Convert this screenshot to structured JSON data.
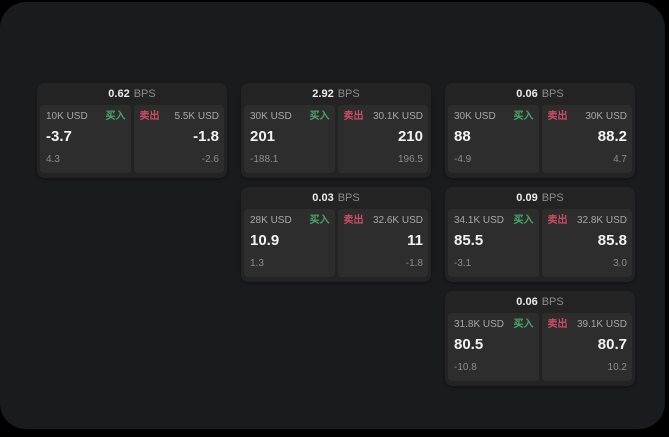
{
  "labels": {
    "bps": "BPS",
    "buy": "买入",
    "sell": "卖出"
  },
  "colors": {
    "background": "#000000",
    "window_bg": "#1a1b1c",
    "card_bg": "#232323",
    "cell_bg": "#2d2d2d",
    "buy_green": "#48a968",
    "sell_red": "#cc4c64",
    "price_text": "#f2f2f2",
    "muted_text": "#8c8c8c"
  },
  "cards": [
    {
      "bps": "0.62",
      "buy": {
        "notional": "10K USD",
        "price": "-3.7",
        "change": "4.3"
      },
      "sell": {
        "notional": "5.5K USD",
        "price": "-1.8",
        "change": "-2.6"
      }
    },
    {
      "bps": "2.92",
      "buy": {
        "notional": "30K USD",
        "price": "201",
        "change": "-188.1"
      },
      "sell": {
        "notional": "30.1K USD",
        "price": "210",
        "change": "196.5"
      }
    },
    {
      "bps": "0.06",
      "buy": {
        "notional": "30K USD",
        "price": "88",
        "change": "-4.9"
      },
      "sell": {
        "notional": "30K USD",
        "price": "88.2",
        "change": "4.7"
      }
    },
    {
      "bps": "0.03",
      "buy": {
        "notional": "28K USD",
        "price": "10.9",
        "change": "1.3"
      },
      "sell": {
        "notional": "32.6K USD",
        "price": "11",
        "change": "-1.8"
      }
    },
    {
      "bps": "0.09",
      "buy": {
        "notional": "34.1K USD",
        "price": "85.5",
        "change": "-3.1"
      },
      "sell": {
        "notional": "32.8K USD",
        "price": "85.8",
        "change": "3.0"
      }
    },
    {
      "bps": "0.06",
      "buy": {
        "notional": "31.8K USD",
        "price": "80.5",
        "change": "-10.8"
      },
      "sell": {
        "notional": "39.1K USD",
        "price": "80.7",
        "change": "10.2"
      }
    }
  ]
}
